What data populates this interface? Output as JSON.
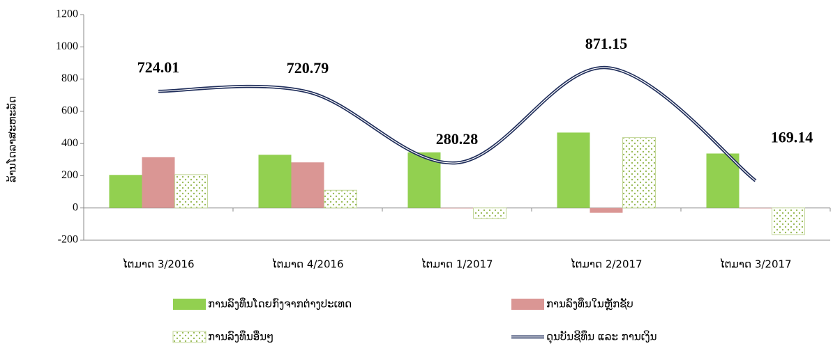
{
  "chart_data": {
    "type": "bar-line",
    "y_label": "ລ້ານໂດລາສະຫະລັດ",
    "categories": [
      "ໄຕມາດ 3/2016",
      "ໄຕມາດ 4/2016",
      "ໄຕມາດ 1/2017",
      "ໄຕມາດ 2/2017",
      "ໄຕມາດ 3/2017"
    ],
    "series": [
      {
        "name": "ການລົງທຶນໂດຍກົງຈາກຕ່າງປະເທດ",
        "type": "bar",
        "color": "#92d050",
        "values": [
          205,
          330,
          345,
          468,
          338
        ]
      },
      {
        "name": "ການລົງທຶນໃນຫຼັກຊັບ",
        "type": "bar",
        "color": "#da9694",
        "values": [
          315,
          283,
          -3,
          -30,
          -3
        ]
      },
      {
        "name": "ການລົງທຶນອື່ນໆ",
        "type": "bar",
        "color": "#c4d79b",
        "pattern": "dots",
        "values": [
          207,
          110,
          -65,
          437,
          -165
        ]
      },
      {
        "name": "ດຸນບັນຊີທຶນ ແລະ ການເງິນ",
        "type": "line",
        "color": "#1f2d5a",
        "smooth": true,
        "values": [
          724.01,
          720.79,
          280.28,
          871.15,
          169.14
        ]
      }
    ],
    "ylim": [
      -200,
      1200
    ],
    "yticks": [
      -200,
      0,
      200,
      400,
      600,
      800,
      1000,
      1200
    ]
  }
}
